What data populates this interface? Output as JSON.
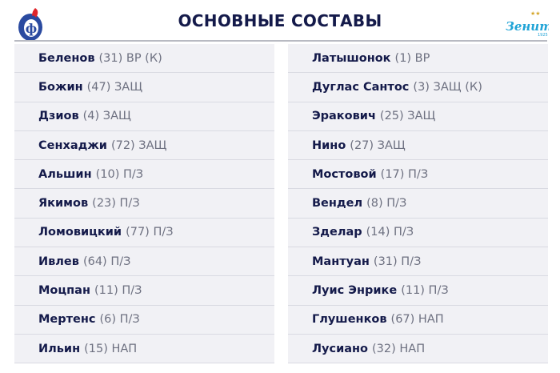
{
  "title": "ОСНОВНЫЕ СОСТАВЫ",
  "home_logo": {
    "icon": "fakel-logo",
    "colors": [
      "#2a4aa0",
      "#e0242a"
    ]
  },
  "away_logo": {
    "icon": "zenit-logo",
    "text": "Зенит",
    "year": "1925",
    "colors": [
      "#1fa3d6",
      "#d4a62a"
    ]
  },
  "home": [
    {
      "name": "Беленов",
      "info": "(31) ВР (К)"
    },
    {
      "name": "Божин",
      "info": "(47) ЗАЩ"
    },
    {
      "name": "Дзиов",
      "info": "(4) ЗАЩ"
    },
    {
      "name": "Сенхаджи",
      "info": "(72) ЗАЩ"
    },
    {
      "name": "Альшин",
      "info": "(10) П/З"
    },
    {
      "name": "Якимов",
      "info": "(23) П/З"
    },
    {
      "name": "Ломовицкий",
      "info": "(77) П/З"
    },
    {
      "name": "Ивлев",
      "info": "(64) П/З"
    },
    {
      "name": "Моцпан",
      "info": "(11) П/З"
    },
    {
      "name": "Мертенс",
      "info": "(6) П/З"
    },
    {
      "name": "Ильин",
      "info": "(15) НАП"
    }
  ],
  "away": [
    {
      "name": "Латышонок",
      "info": "(1) ВР"
    },
    {
      "name": "Дуглас Сантос",
      "info": "(3) ЗАЩ (К)"
    },
    {
      "name": "Эракович",
      "info": "(25) ЗАЩ"
    },
    {
      "name": "Нино",
      "info": "(27) ЗАЩ"
    },
    {
      "name": "Мостовой",
      "info": "(17) П/З"
    },
    {
      "name": "Вендел",
      "info": "(8) П/З"
    },
    {
      "name": "Зделар",
      "info": "(14) П/З"
    },
    {
      "name": "Мантуан",
      "info": "(31) П/З"
    },
    {
      "name": "Луис Энрике",
      "info": "(11) П/З"
    },
    {
      "name": "Глушенков",
      "info": "(67) НАП"
    },
    {
      "name": "Лусиано",
      "info": "(32) НАП"
    }
  ]
}
